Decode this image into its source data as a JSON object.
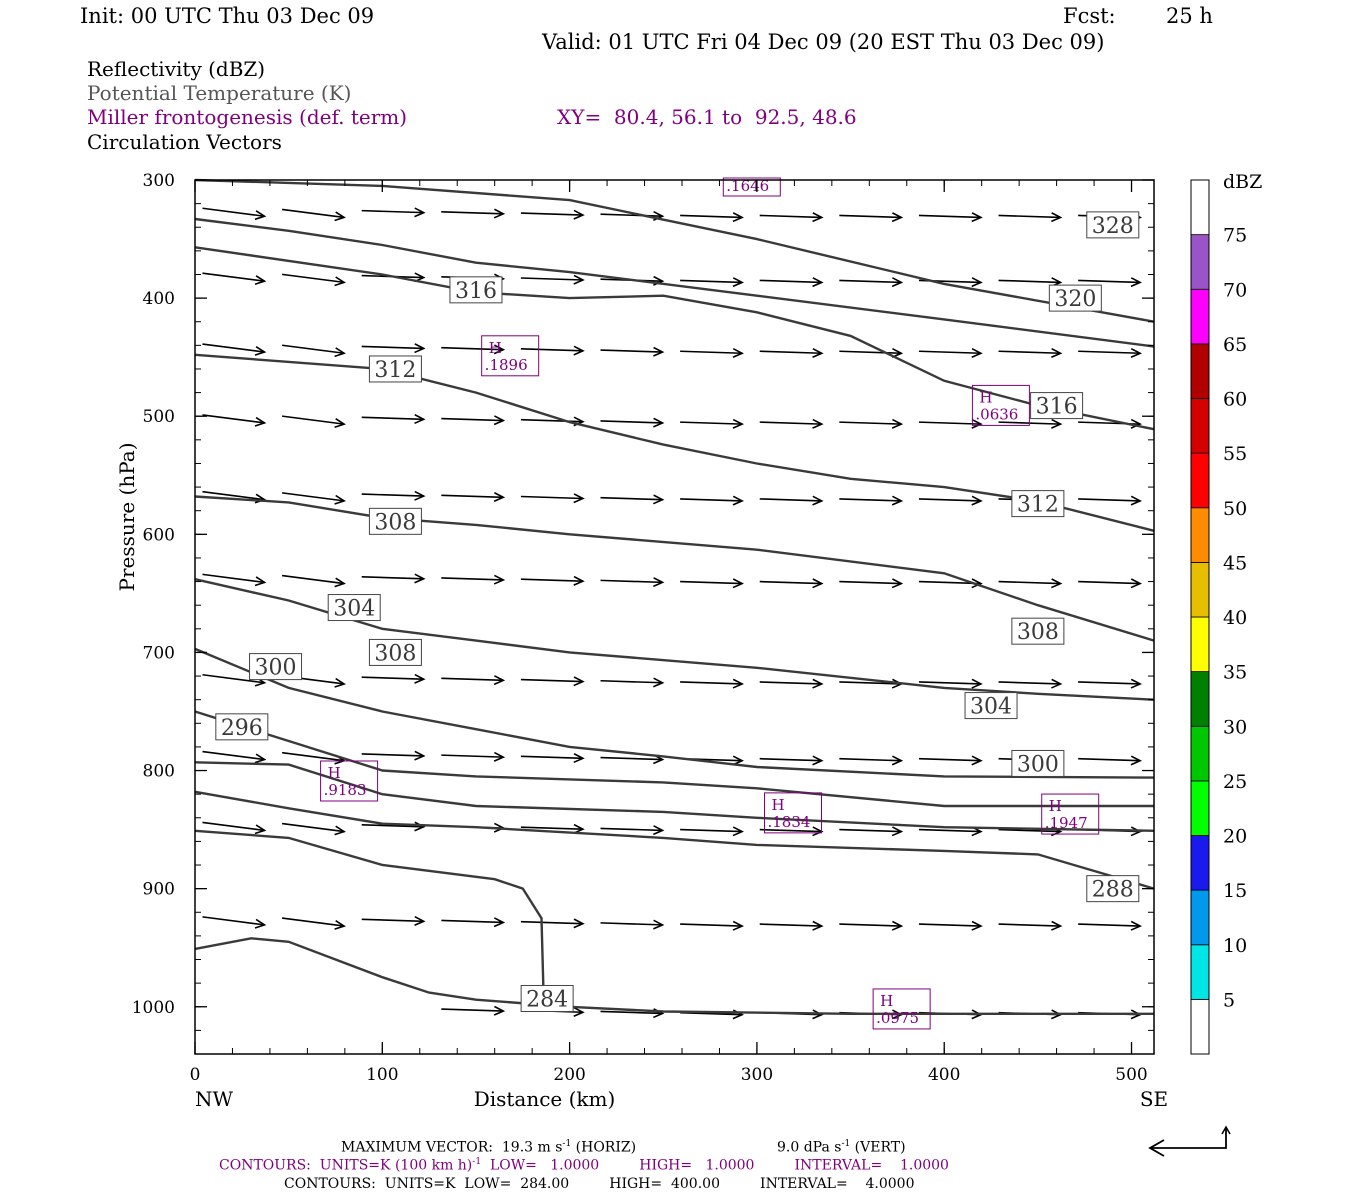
{
  "header": {
    "init": "Init: 00 UTC Thu 03 Dec 09",
    "fcst_label": "Fcst:",
    "fcst_value": "25 h",
    "valid": "Valid: 01 UTC Fri 04 Dec 09 (20 EST Thu 03 Dec 09)"
  },
  "legend": {
    "reflectivity": "Reflectivity (dBZ)",
    "theta": "Potential Temperature (K)",
    "miller": "Miller frontogenesis (def. term)",
    "xy": "XY=  80.4, 56.1 to  92.5, 48.6",
    "vectors": "Circulation Vectors"
  },
  "colors": {
    "contour": "#3a3a3a",
    "purple": "#800080",
    "frame": "#000000"
  },
  "colorbar": {
    "unit": "dBZ",
    "labels": [
      "5",
      "10",
      "15",
      "20",
      "25",
      "30",
      "35",
      "40",
      "45",
      "50",
      "55",
      "60",
      "65",
      "70",
      "75"
    ],
    "colors": [
      "#ffffff",
      "#00e5e5",
      "#0099ee",
      "#1a1aee",
      "#00ff00",
      "#00c800",
      "#008000",
      "#ffff00",
      "#e5bf00",
      "#ff8c00",
      "#ff0000",
      "#d40000",
      "#b00000",
      "#ff00ff",
      "#9955c8",
      "#ffffff"
    ]
  },
  "footer": {
    "max_vector": "MAXIMUM VECTOR:  19.3 m s",
    "max_vector_exp": "-1",
    "max_vector_h": " (HORIZ)",
    "vert": "9.0 dPa s",
    "vert_exp": "-1",
    "vert_v": " (VERT)",
    "contours1": "CONTOURS:  UNITS=K (100 km h)",
    "contours1_exp": "-1",
    "contours1_rest": "  LOW=   1.0000         HIGH=   1.0000         INTERVAL=    1.0000",
    "contours2": "CONTOURS:  UNITS=K  LOW=  284.00         HIGH=  400.00         INTERVAL=    4.0000"
  },
  "chart_data": {
    "type": "line",
    "xlabel": "Distance (km)",
    "ylabel": "Pressure (hPa)",
    "xlim": [
      0,
      512
    ],
    "ylim": [
      1040,
      300
    ],
    "x_ticks": [
      0,
      100,
      200,
      300,
      400,
      500
    ],
    "y_ticks": [
      300,
      400,
      500,
      600,
      700,
      800,
      900,
      1000
    ],
    "x_end_labels": {
      "left": "NW",
      "right": "SE"
    },
    "series": [
      {
        "points": [
          [
            0,
            300
          ],
          [
            100,
            305
          ],
          [
            200,
            317
          ],
          [
            300,
            350
          ],
          [
            400,
            388
          ],
          [
            512,
            420
          ]
        ]
      },
      {
        "points": [
          [
            0,
            333
          ],
          [
            50,
            343
          ],
          [
            100,
            355
          ],
          [
            150,
            370
          ],
          [
            200,
            378
          ],
          [
            300,
            398
          ],
          [
            400,
            418
          ],
          [
            512,
            441
          ]
        ]
      },
      {
        "points": [
          [
            0,
            357
          ],
          [
            100,
            380
          ],
          [
            150,
            395
          ],
          [
            200,
            400
          ],
          [
            250,
            398
          ],
          [
            300,
            412
          ],
          [
            350,
            432
          ],
          [
            400,
            470
          ],
          [
            450,
            491
          ],
          [
            512,
            511
          ]
        ]
      },
      {
        "points": [
          [
            0,
            448
          ],
          [
            100,
            460
          ],
          [
            150,
            480
          ],
          [
            200,
            505
          ],
          [
            250,
            524
          ],
          [
            300,
            540
          ],
          [
            350,
            553
          ],
          [
            400,
            560
          ],
          [
            450,
            572
          ],
          [
            512,
            597
          ]
        ]
      },
      {
        "points": [
          [
            0,
            568
          ],
          [
            50,
            573
          ],
          [
            100,
            586
          ],
          [
            150,
            592
          ],
          [
            200,
            600
          ],
          [
            300,
            613
          ],
          [
            400,
            633
          ],
          [
            450,
            660
          ],
          [
            512,
            690
          ]
        ]
      },
      {
        "points": [
          [
            0,
            638
          ],
          [
            50,
            656
          ],
          [
            100,
            680
          ],
          [
            150,
            690
          ],
          [
            200,
            700
          ],
          [
            300,
            713
          ],
          [
            400,
            730
          ],
          [
            450,
            735
          ],
          [
            512,
            740
          ]
        ]
      },
      {
        "points": [
          [
            0,
            697
          ],
          [
            50,
            730
          ],
          [
            100,
            750
          ],
          [
            150,
            765
          ],
          [
            200,
            780
          ],
          [
            250,
            788
          ],
          [
            300,
            797
          ],
          [
            400,
            805
          ],
          [
            512,
            806
          ]
        ]
      },
      {
        "points": [
          [
            0,
            750
          ],
          [
            50,
            775
          ],
          [
            100,
            800
          ],
          [
            150,
            805
          ],
          [
            250,
            810
          ],
          [
            300,
            815
          ],
          [
            400,
            830
          ],
          [
            512,
            830
          ]
        ]
      },
      {
        "points": [
          [
            0,
            793
          ],
          [
            50,
            795
          ],
          [
            100,
            820
          ],
          [
            150,
            830
          ],
          [
            250,
            835
          ],
          [
            300,
            840
          ],
          [
            400,
            848
          ],
          [
            512,
            851
          ]
        ]
      },
      {
        "points": [
          [
            0,
            818
          ],
          [
            50,
            832
          ],
          [
            100,
            845
          ],
          [
            150,
            848
          ],
          [
            250,
            857
          ],
          [
            300,
            863
          ],
          [
            400,
            868
          ],
          [
            450,
            871
          ],
          [
            512,
            900
          ]
        ]
      },
      {
        "points": [
          [
            0,
            851
          ],
          [
            50,
            857
          ],
          [
            100,
            880
          ],
          [
            160,
            892
          ],
          [
            175,
            900
          ],
          [
            185,
            925
          ],
          [
            186,
            985
          ]
        ]
      },
      {
        "points": [
          [
            0,
            951
          ],
          [
            30,
            942
          ],
          [
            50,
            945
          ],
          [
            75,
            960
          ],
          [
            100,
            975
          ],
          [
            125,
            988
          ],
          [
            150,
            994
          ],
          [
            200,
            1000
          ],
          [
            250,
            1004
          ],
          [
            350,
            1006
          ],
          [
            512,
            1006
          ]
        ]
      }
    ],
    "contour_labels": [
      "328",
      "320",
      "316",
      "312",
      "316",
      "312",
      "308",
      "308",
      "304",
      "308",
      "300",
      "304",
      "296",
      "300",
      "288",
      "284"
    ],
    "frontogenesis_maxima": [
      ".1646",
      ".1896",
      ".0636",
      ".9183",
      ".1834",
      ".1947",
      ".0975"
    ],
    "frontogenesis_marker": "H"
  }
}
